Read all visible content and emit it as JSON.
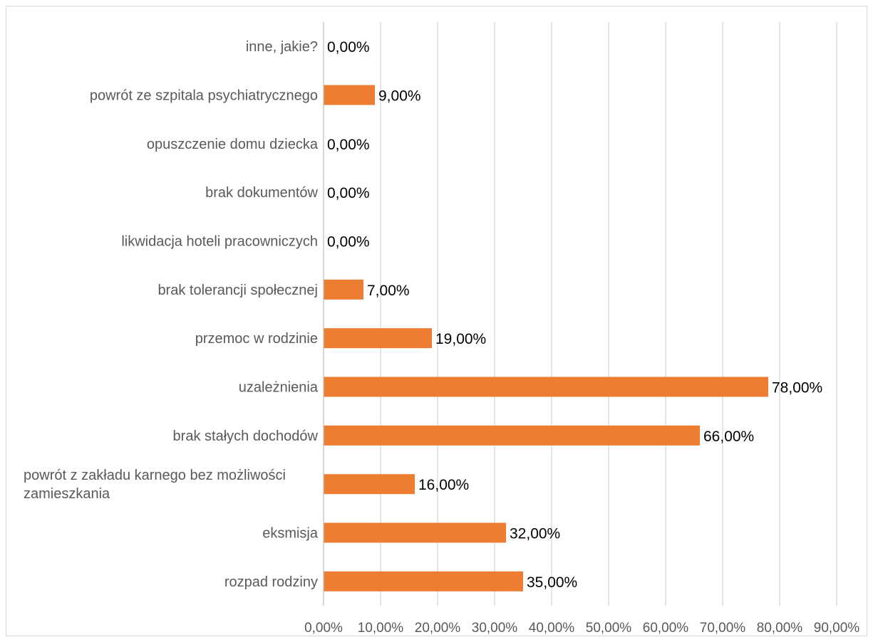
{
  "chart_data": {
    "type": "bar",
    "orientation": "horizontal",
    "title": "",
    "xlabel": "",
    "ylabel": "",
    "categories": [
      "rozpad rodziny",
      "eksmisja",
      "powrót z zakładu karnego bez możliwości zamieszkania",
      "brak stałych dochodów",
      "uzależnienia",
      "przemoc w rodzinie",
      "brak tolerancji społecznej",
      "likwidacja hoteli pracowniczych",
      "brak dokumentów",
      "opuszczenie domu dziecka",
      "powrót ze szpitala psychiatrycznego",
      "inne, jakie?"
    ],
    "category_lines": [
      [
        "rozpad rodziny"
      ],
      [
        "eksmisja"
      ],
      [
        "powrót z zakładu karnego bez możliwości",
        "zamieszkania"
      ],
      [
        "brak stałych dochodów"
      ],
      [
        "uzależnienia"
      ],
      [
        "przemoc w rodzinie"
      ],
      [
        "brak tolerancji społecznej"
      ],
      [
        "likwidacja hoteli pracowniczych"
      ],
      [
        "brak dokumentów"
      ],
      [
        "opuszczenie domu dziecka"
      ],
      [
        "powrót ze szpitala psychiatrycznego"
      ],
      [
        "inne, jakie?"
      ]
    ],
    "values": [
      35,
      32,
      16,
      66,
      78,
      19,
      7,
      0,
      0,
      0,
      9,
      0
    ],
    "value_labels": [
      "35,00%",
      "32,00%",
      "16,00%",
      "66,00%",
      "78,00%",
      "19,00%",
      "7,00%",
      "0,00%",
      "0,00%",
      "0,00%",
      "9,00%",
      "0,00%"
    ],
    "xlim": [
      0,
      90
    ],
    "x_ticks": [
      0,
      10,
      20,
      30,
      40,
      50,
      60,
      70,
      80,
      90
    ],
    "x_tick_labels": [
      "0,00%",
      "10,00%",
      "20,00%",
      "30,00%",
      "40,00%",
      "50,00%",
      "60,00%",
      "70,00%",
      "80,00%",
      "90,00%"
    ],
    "grid": true,
    "legend": "none",
    "bar_color": "#ED7D31",
    "grid_color": "#D9D9D9",
    "label_color": "#595959"
  }
}
